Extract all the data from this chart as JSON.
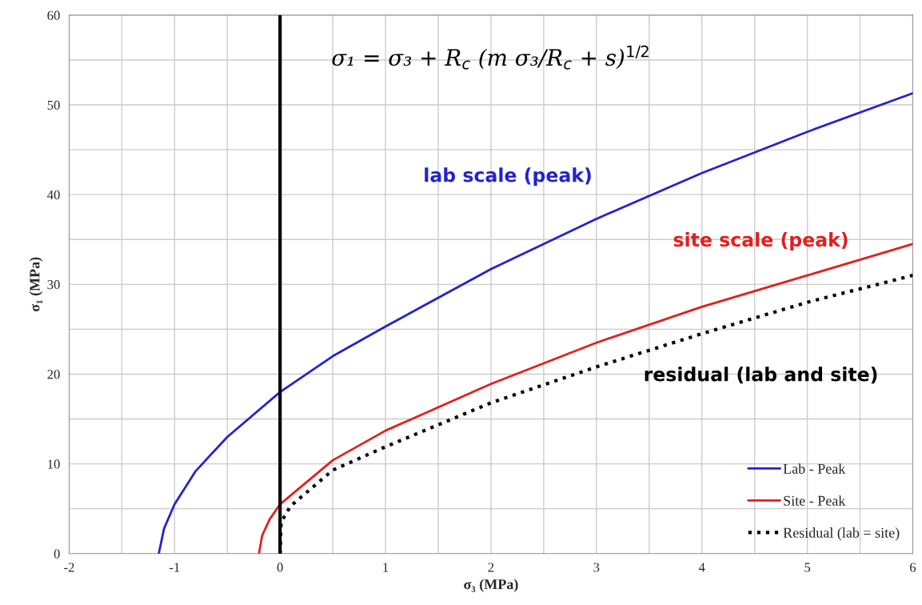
{
  "chart_data": {
    "type": "line",
    "xlabel": "σ₃ (MPa)",
    "ylabel": "σ₁ (MPa)",
    "xlim": [
      -2,
      6
    ],
    "ylim": [
      0,
      60
    ],
    "xticks": [
      -2,
      {
        "value": -1.5,
        "label": null
      },
      -1,
      {
        "value": -0.5,
        "label": null
      },
      0,
      {
        "value": 0.5,
        "label": null
      },
      1,
      {
        "value": 1.5,
        "label": null
      },
      2,
      {
        "value": 2.5,
        "label": null
      },
      3,
      {
        "value": 3.5,
        "label": null
      },
      4,
      {
        "value": 4.5,
        "label": null
      },
      5,
      {
        "value": 5.5,
        "label": null
      },
      6
    ],
    "yticks": [
      0,
      {
        "value": 5,
        "label": null
      },
      10,
      {
        "value": 15,
        "label": null
      },
      20,
      {
        "value": 25,
        "label": null
      },
      30,
      {
        "value": 35,
        "label": null
      },
      40,
      {
        "value": 45,
        "label": null
      },
      50,
      {
        "value": 55,
        "label": null
      },
      60
    ],
    "grid": true,
    "legend": "bottom right",
    "series": [
      {
        "name": "Lab - Peak",
        "color": "#2323d0",
        "line_style": "solid",
        "x": [
          -1.15,
          -1.1,
          -1.0,
          -0.8,
          -0.5,
          0,
          0.5,
          1,
          2,
          3,
          4,
          5,
          6
        ],
        "values": [
          0,
          2.8,
          5.5,
          9.2,
          13.0,
          18.0,
          22.0,
          25.3,
          31.7,
          37.3,
          42.4,
          47.0,
          51.3
        ]
      },
      {
        "name": "Site - Peak",
        "color": "#e02020",
        "line_style": "solid",
        "x": [
          -0.2,
          -0.17,
          -0.1,
          0,
          0.5,
          1,
          2,
          3,
          4,
          5,
          6
        ],
        "values": [
          0,
          2.0,
          3.8,
          5.5,
          10.4,
          13.7,
          18.9,
          23.5,
          27.5,
          31.0,
          34.5
        ]
      },
      {
        "name": "Residual (lab = site)",
        "color": "#000000",
        "line_style": "dotted",
        "x": [
          0,
          0.01,
          0.1,
          0.5,
          1,
          2,
          3,
          4,
          5,
          6
        ],
        "values": [
          0,
          3.5,
          5.3,
          9.3,
          11.9,
          16.8,
          20.8,
          24.5,
          28.0,
          31.0
        ]
      }
    ],
    "ref_lines": [
      {
        "axis": "x",
        "value": 0,
        "label": null,
        "color": "#000000"
      }
    ],
    "annotations": [
      "σ₁ = σ₃ + R$_{c}$ (m σ₃/R$_{c}$ + s)$^{1/2}$",
      "lab scale (peak)",
      "site scale (peak)",
      "residual (lab and site)"
    ]
  }
}
